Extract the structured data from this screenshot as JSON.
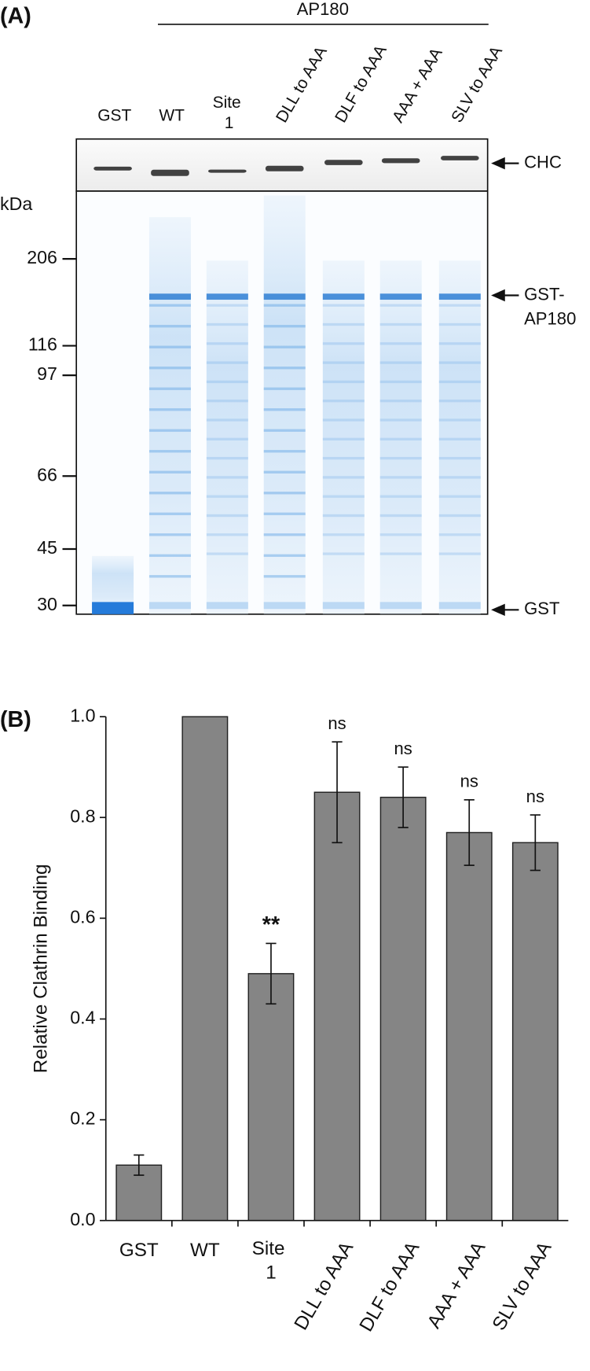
{
  "panel_a": {
    "label": "(A)",
    "header": "AP180",
    "lanes": [
      "GST",
      "WT",
      "Site 1",
      "DLL to AAA",
      "DLF to AAA",
      "AAA + AAA",
      "SLV to AAA"
    ],
    "marker_unit": "kDa",
    "markers": [
      206,
      116,
      97,
      66,
      45,
      30
    ],
    "bands": [
      [
        "CHC"
      ],
      [
        "GST-",
        "AP180"
      ],
      [
        "GST"
      ]
    ]
  },
  "chart_data": {
    "type": "bar",
    "panel_label": "(B)",
    "y_label": "Relative Clathrin Binding",
    "categories": [
      "GST",
      "WT",
      "Site 1",
      "DLL to AAA",
      "DLF to AAA",
      "AAA + AAA",
      "SLV to AAA"
    ],
    "values": [
      0.11,
      1.0,
      0.49,
      0.85,
      0.84,
      0.77,
      0.75
    ],
    "errors": [
      0.02,
      null,
      0.06,
      0.1,
      0.06,
      0.065,
      0.055
    ],
    "annotations": [
      null,
      null,
      "**",
      "ns",
      "ns",
      "ns",
      "ns"
    ],
    "color": "#858585",
    "ylim": [
      0,
      1.0
    ],
    "yticks": [
      {
        "value": 0,
        "label": "0.0"
      },
      {
        "value": 0.2,
        "label": "0.2"
      },
      {
        "value": 0.4,
        "label": "0.4"
      },
      {
        "value": 0.6,
        "label": "0.6"
      },
      {
        "value": 0.8,
        "label": "0.8"
      },
      {
        "value": 1.0,
        "label": "1.0"
      }
    ]
  }
}
